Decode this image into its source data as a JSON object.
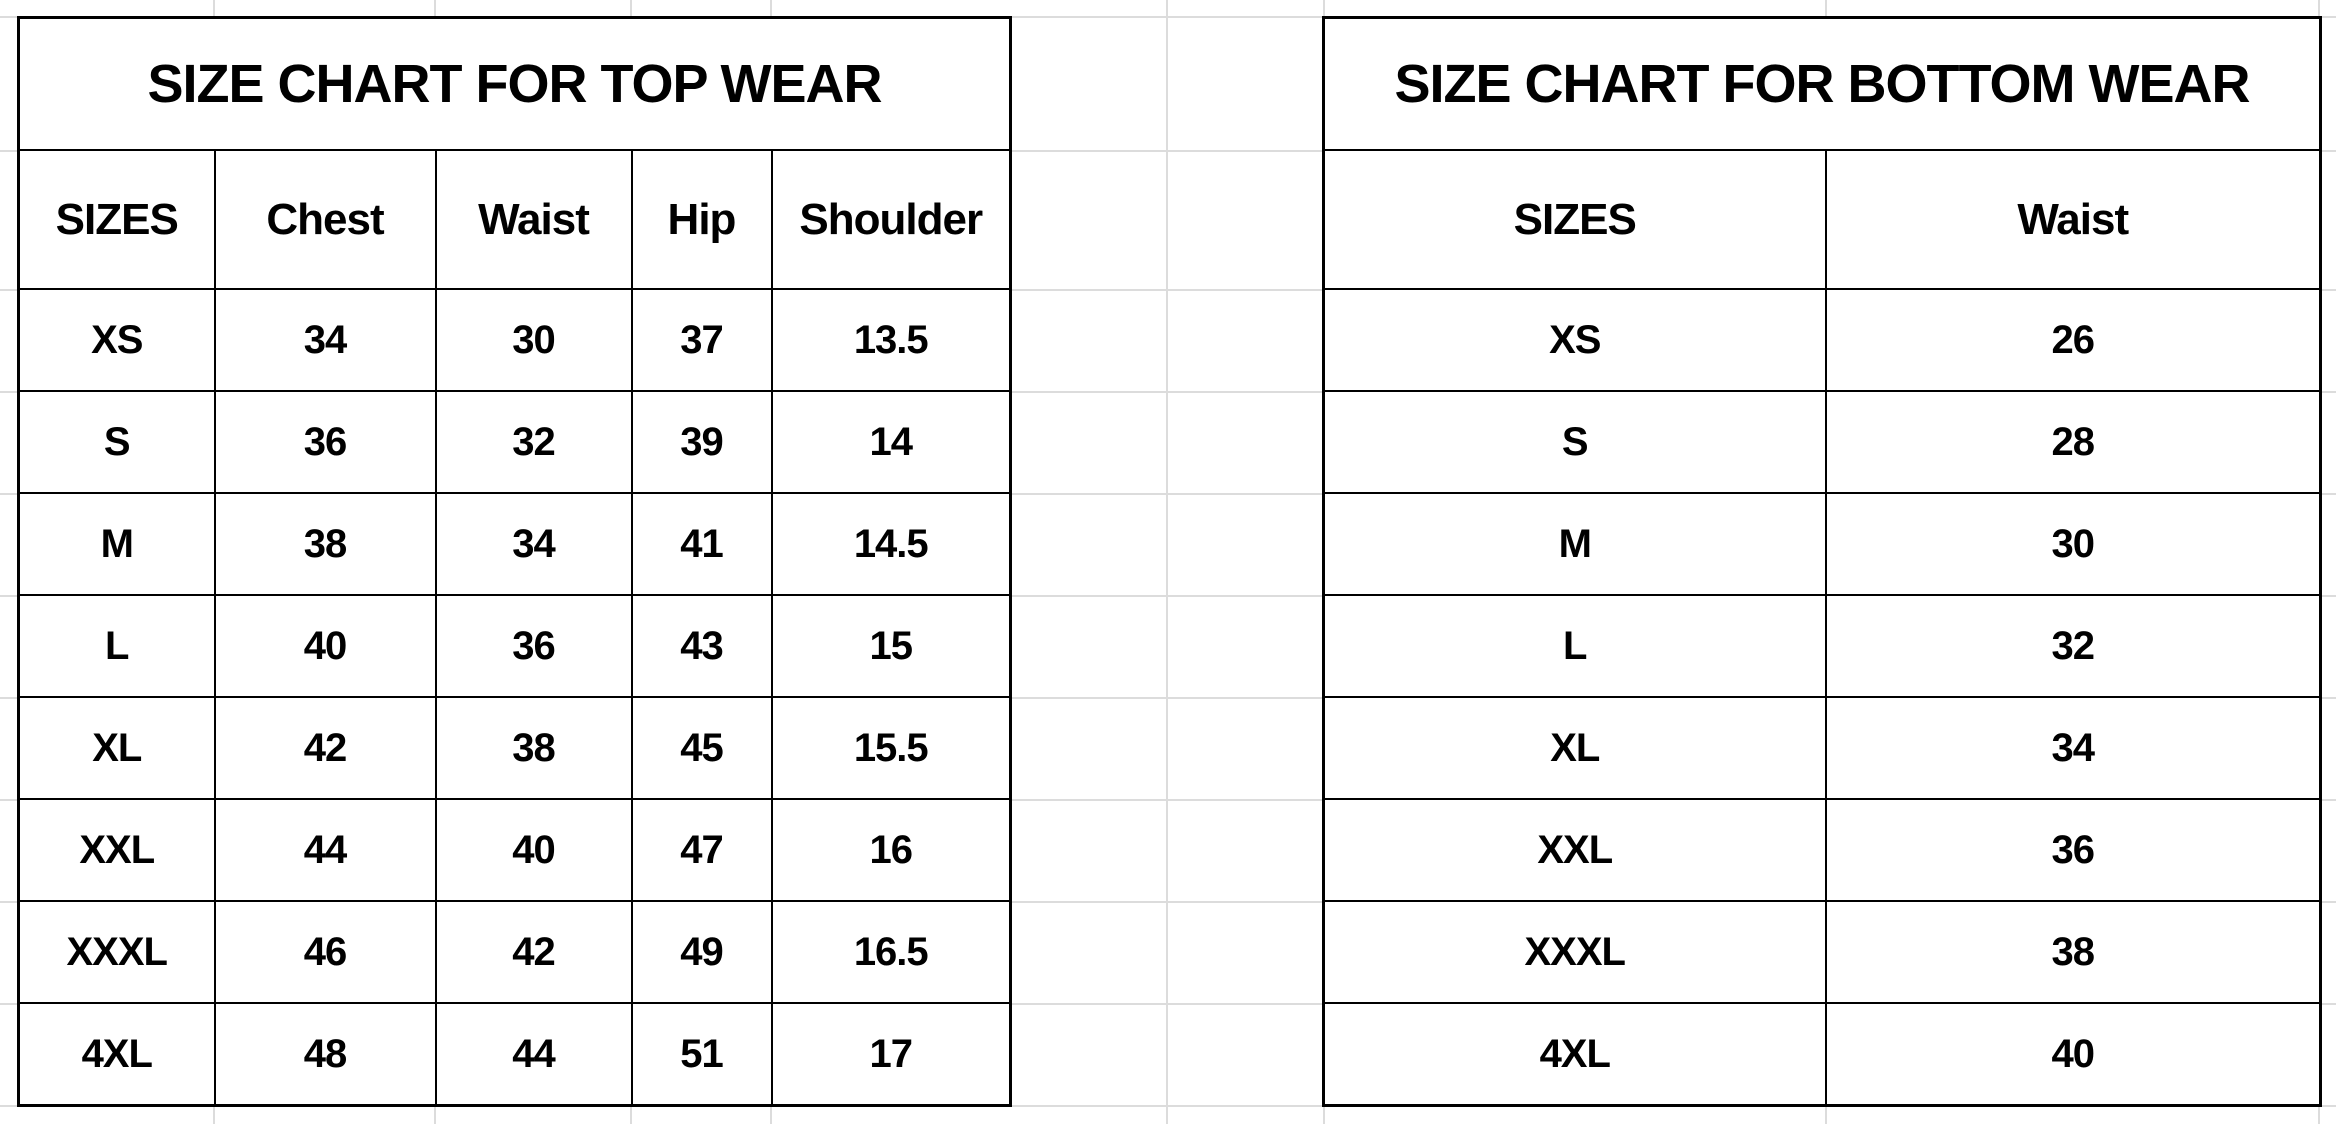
{
  "top_wear": {
    "title": "SIZE CHART FOR TOP WEAR",
    "columns": [
      "SIZES",
      "Chest",
      "Waist",
      "Hip",
      "Shoulder"
    ],
    "rows": [
      [
        "XS",
        "34",
        "30",
        "37",
        "13.5"
      ],
      [
        "S",
        "36",
        "32",
        "39",
        "14"
      ],
      [
        "M",
        "38",
        "34",
        "41",
        "14.5"
      ],
      [
        "L",
        "40",
        "36",
        "43",
        "15"
      ],
      [
        "XL",
        "42",
        "38",
        "45",
        "15.5"
      ],
      [
        "XXL",
        "44",
        "40",
        "47",
        "16"
      ],
      [
        "XXXL",
        "46",
        "42",
        "49",
        "16.5"
      ],
      [
        "4XL",
        "48",
        "44",
        "51",
        "17"
      ]
    ]
  },
  "bottom_wear": {
    "title": "SIZE CHART FOR BOTTOM WEAR",
    "columns": [
      "SIZES",
      "Waist"
    ],
    "rows": [
      [
        "XS",
        "26"
      ],
      [
        "S",
        "28"
      ],
      [
        "M",
        "30"
      ],
      [
        "L",
        "32"
      ],
      [
        "XL",
        "34"
      ],
      [
        "XXL",
        "36"
      ],
      [
        "XXXL",
        "38"
      ],
      [
        "4XL",
        "40"
      ]
    ]
  }
}
